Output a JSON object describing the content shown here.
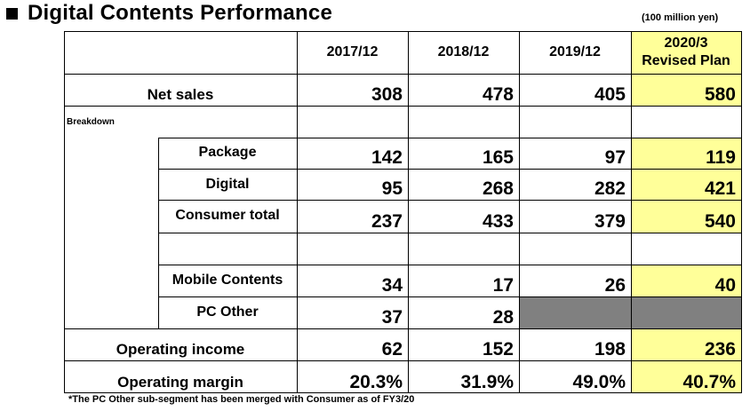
{
  "title": "Digital Contents Performance",
  "unit": "(100 million yen)",
  "note": "*The PC Other sub-segment has been merged with Consumer as of FY3/20",
  "columns": [
    "2017/12",
    "2018/12",
    "2019/12"
  ],
  "plan_column": [
    "2020/3",
    "Revised Plan"
  ],
  "breakdown_label": "Breakdown",
  "rows": {
    "net_sales": {
      "label": "Net sales",
      "values": [
        "308",
        "478",
        "405",
        "580"
      ]
    },
    "package": {
      "label": "Package",
      "values": [
        "142",
        "165",
        "97",
        "119"
      ]
    },
    "digital": {
      "label": "Digital",
      "values": [
        "95",
        "268",
        "282",
        "421"
      ]
    },
    "consumer_total": {
      "label": "Consumer total",
      "values": [
        "237",
        "433",
        "379",
        "540"
      ]
    },
    "mobile_contents": {
      "label": "Mobile Contents",
      "values": [
        "34",
        "17",
        "26",
        "40"
      ]
    },
    "pc_other": {
      "label": "PC Other",
      "values": [
        "37",
        "28"
      ]
    },
    "operating_income": {
      "label": "Operating income",
      "values": [
        "62",
        "152",
        "198",
        "236"
      ]
    },
    "operating_margin": {
      "label": "Operating margin",
      "values": [
        "20.3%",
        "31.9%",
        "49.0%",
        "40.7%"
      ]
    }
  },
  "colors": {
    "plan_fill": "#ffff99",
    "merged_fill": "#808080",
    "title_bullet": "#000000"
  }
}
